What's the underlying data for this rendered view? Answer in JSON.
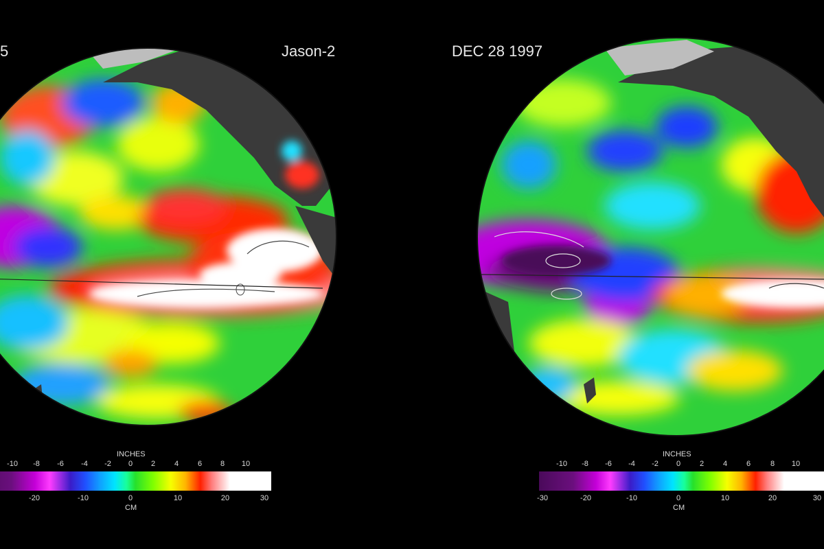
{
  "left_panel": {
    "date_fragment": "5",
    "mission": "Jason-2",
    "scale": {
      "units_top": "INCHES",
      "units_bottom": "CM",
      "inch_ticks": [
        "-10",
        "-8",
        "-6",
        "-4",
        "-2",
        "0",
        "2",
        "4",
        "6",
        "8",
        "10"
      ],
      "cm_ticks": [
        "-20",
        "-10",
        "0",
        "10",
        "20",
        "30"
      ]
    }
  },
  "right_panel": {
    "date": "DEC 28  1997",
    "scale": {
      "units_top": "INCHES",
      "units_bottom": "CM",
      "inch_ticks": [
        "-10",
        "-8",
        "-6",
        "-4",
        "-2",
        "0",
        "2",
        "4",
        "6",
        "8",
        "10"
      ],
      "cm_ticks": [
        "-30",
        "-20",
        "-10",
        "0",
        "10",
        "20",
        "30"
      ]
    }
  },
  "colors": {
    "background": "#000000",
    "land": "#3a3a3a",
    "ice": "#bdbdbd",
    "ocean_base": "#2fd03a"
  }
}
